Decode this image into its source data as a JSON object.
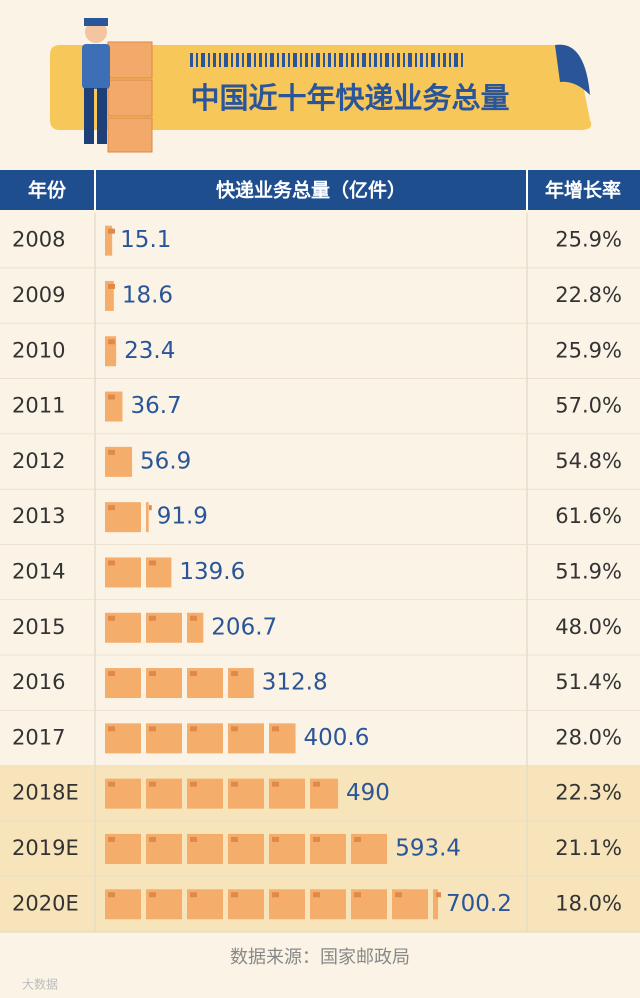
{
  "title": "中国近十年快递业务总量",
  "table": {
    "header": [
      "年份",
      "快递业务总量（亿件）",
      "年增长率"
    ],
    "rows": [
      {
        "year": "2008",
        "volume": 15.1,
        "growth": "25.9%"
      },
      {
        "year": "2009",
        "volume": 18.6,
        "growth": "22.8%"
      },
      {
        "year": "2010",
        "volume": 23.4,
        "growth": "25.9%"
      },
      {
        "year": "2011",
        "volume": 36.7,
        "growth": "57.0%"
      },
      {
        "year": "2012",
        "volume": 56.9,
        "growth": "54.8%"
      },
      {
        "year": "2013",
        "volume": 91.9,
        "growth": "61.6%"
      },
      {
        "year": "2014",
        "volume": 139.6,
        "growth": "51.9%"
      },
      {
        "year": "2015",
        "volume": 206.7,
        "growth": "48.0%"
      },
      {
        "year": "2016",
        "volume": 312.8,
        "growth": "51.4%"
      },
      {
        "year": "2017",
        "volume": 400.6,
        "growth": "28.0%"
      },
      {
        "year": "2018E",
        "volume": 490,
        "growth": "22.3%"
      },
      {
        "year": "2019E",
        "volume": 593.4,
        "growth": "21.1%"
      },
      {
        "year": "2020E",
        "volume": 700.2,
        "growth": "18.0%"
      }
    ]
  },
  "source": "数据来源：国家邮政局",
  "watermark": "大数据"
}
